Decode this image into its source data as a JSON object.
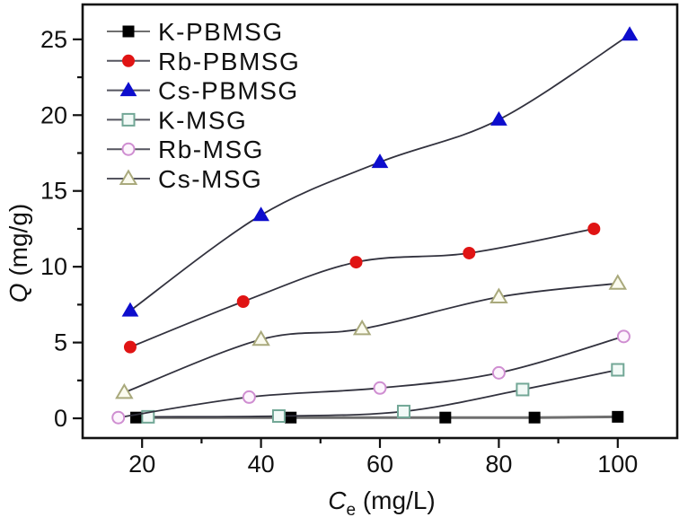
{
  "chart_data": {
    "type": "line",
    "title": "",
    "xlabel": {
      "symbol": "C",
      "subscript": "e",
      "unit": " (mg/L)"
    },
    "ylabel": {
      "symbol": "Q",
      "unit": " (mg/g)"
    },
    "xlim": [
      10,
      110
    ],
    "ylim": [
      -1.3,
      27.3
    ],
    "x_major_ticks": [
      20,
      40,
      60,
      80,
      100
    ],
    "x_minor_ticks": [
      30,
      50,
      70,
      90
    ],
    "y_major_ticks": [
      0,
      5,
      10,
      15,
      20,
      25
    ],
    "y_minor_ticks": [
      2.5,
      7.5,
      12.5,
      17.5,
      22.5
    ],
    "grid": false,
    "legend_position": "top-left",
    "axis_color": "#111111",
    "series": [
      {
        "name": "K-PBMSG",
        "marker": "square",
        "filled": true,
        "marker_color": "#000000",
        "marker_fill": "#000000",
        "line_color": "#6f6f6f",
        "line_width": 3,
        "x": [
          19,
          45,
          71,
          86,
          100
        ],
        "y": [
          0.05,
          0.05,
          0.05,
          0.05,
          0.1
        ]
      },
      {
        "name": "Rb-PBMSG",
        "marker": "circle",
        "filled": true,
        "marker_color": "#e01414",
        "marker_fill": "#e01414",
        "line_color": "#32323e",
        "line_width": 1.8,
        "x": [
          18,
          37,
          56,
          75,
          96
        ],
        "y": [
          4.7,
          7.7,
          10.3,
          10.9,
          12.5
        ]
      },
      {
        "name": "Cs-PBMSG",
        "marker": "triangle",
        "filled": true,
        "marker_color": "#0d0dcd",
        "marker_fill": "#0d0dcd",
        "line_color": "#32323e",
        "line_width": 1.8,
        "x": [
          18,
          40,
          60,
          80,
          102
        ],
        "y": [
          7.1,
          13.4,
          16.9,
          19.7,
          25.3
        ]
      },
      {
        "name": "K-MSG",
        "marker": "square",
        "filled": false,
        "marker_color": "#72a796",
        "marker_fill": "#f2faf7",
        "line_color": "#32323e",
        "line_width": 1.8,
        "x": [
          21,
          43,
          64,
          84,
          100
        ],
        "y": [
          0.1,
          0.15,
          0.45,
          1.9,
          3.2
        ]
      },
      {
        "name": "Rb-MSG",
        "marker": "circle",
        "filled": false,
        "marker_color": "#cf8ed1",
        "marker_fill": "#fdf5fd",
        "line_color": "#32323e",
        "line_width": 1.8,
        "x": [
          16,
          38,
          60,
          80,
          101
        ],
        "y": [
          0.05,
          1.4,
          2.0,
          3.0,
          5.4
        ]
      },
      {
        "name": "Cs-MSG",
        "marker": "triangle",
        "filled": false,
        "marker_color": "#a9a97c",
        "marker_fill": "#fbfbef",
        "line_color": "#32323e",
        "line_width": 1.8,
        "x": [
          17,
          40,
          57,
          80,
          100
        ],
        "y": [
          1.7,
          5.2,
          5.9,
          8.0,
          8.9
        ]
      }
    ]
  }
}
